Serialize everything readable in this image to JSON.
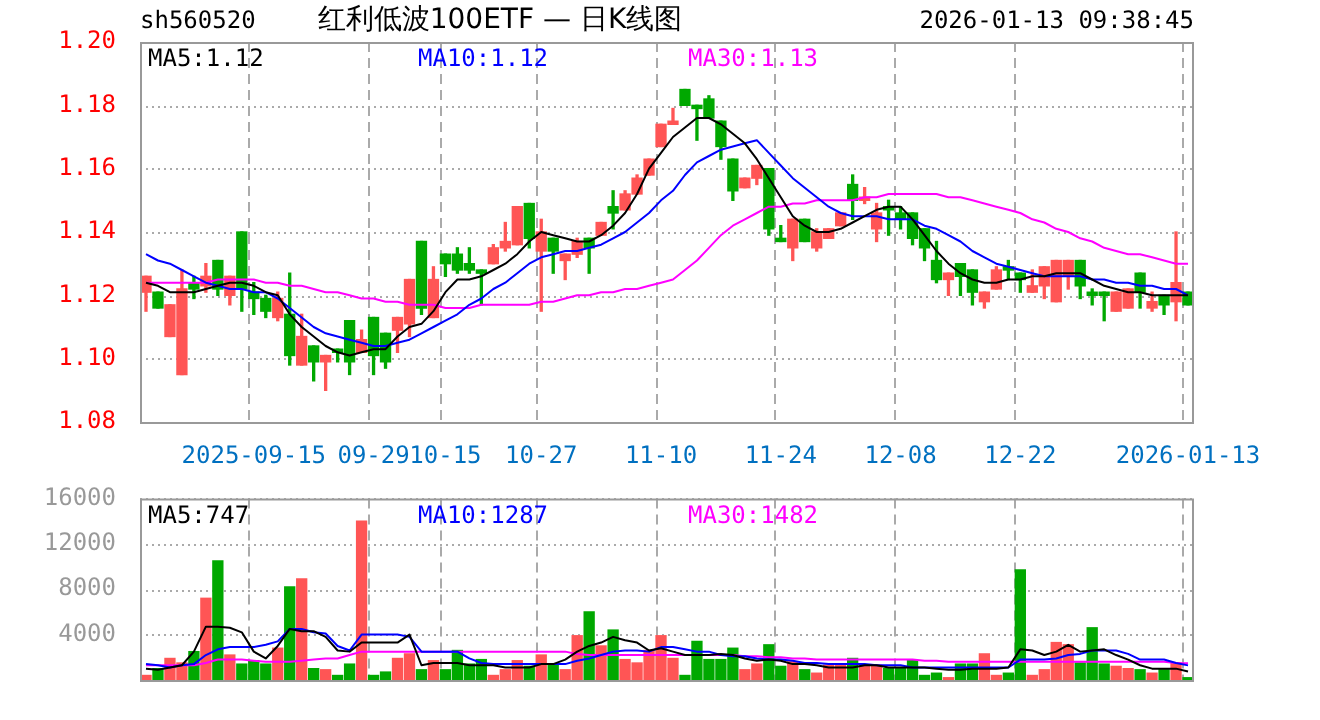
{
  "chart_data": [
    {
      "type": "candlestick",
      "title": "红利低波100ETF — 日K线图",
      "annotations": [
        "sh560520",
        "2026-01-13 09:38:45"
      ],
      "categories": [
        null,
        null,
        null,
        null,
        null,
        null,
        null,
        null,
        null,
        "2025-09-15",
        null,
        null,
        null,
        null,
        null,
        null,
        null,
        null,
        null,
        "09-29",
        null,
        null,
        null,
        null,
        null,
        "10-15",
        null,
        null,
        null,
        null,
        null,
        null,
        null,
        "10-27",
        null,
        null,
        null,
        null,
        null,
        null,
        null,
        null,
        null,
        "11-10",
        null,
        null,
        null,
        null,
        null,
        null,
        null,
        null,
        null,
        "11-24",
        null,
        null,
        null,
        null,
        null,
        null,
        null,
        null,
        null,
        "12-08",
        null,
        null,
        null,
        null,
        null,
        null,
        null,
        null,
        null,
        "12-22",
        null,
        null,
        null,
        null,
        null,
        null,
        null,
        null,
        null,
        null,
        null,
        null,
        null,
        "2026-01-13"
      ],
      "ohlc": [
        [
          1.121,
          1.126,
          1.115,
          1.126
        ],
        [
          1.121,
          1.121,
          1.116,
          1.116
        ],
        [
          1.107,
          1.117,
          1.107,
          1.117
        ],
        [
          1.095,
          1.128,
          1.095,
          1.122
        ],
        [
          1.124,
          1.126,
          1.119,
          1.122
        ],
        [
          1.123,
          1.13,
          1.121,
          1.126
        ],
        [
          1.131,
          1.131,
          1.12,
          1.122
        ],
        [
          1.12,
          1.126,
          1.117,
          1.126
        ],
        [
          1.14,
          1.14,
          1.115,
          1.122
        ],
        [
          1.121,
          1.124,
          1.114,
          1.119
        ],
        [
          1.119,
          1.12,
          1.113,
          1.115
        ],
        [
          1.113,
          1.121,
          1.112,
          1.119
        ],
        [
          1.114,
          1.127,
          1.098,
          1.101
        ],
        [
          1.098,
          1.114,
          1.098,
          1.107
        ],
        [
          1.104,
          1.104,
          1.093,
          1.099
        ],
        [
          1.099,
          1.101,
          1.09,
          1.101
        ],
        [
          1.103,
          1.103,
          1.099,
          1.102
        ],
        [
          1.112,
          1.112,
          1.095,
          1.099
        ],
        [
          1.102,
          1.109,
          1.102,
          1.106
        ],
        [
          1.113,
          1.113,
          1.095,
          1.101
        ],
        [
          1.108,
          1.108,
          1.097,
          1.099
        ],
        [
          1.109,
          1.113,
          1.102,
          1.113
        ],
        [
          1.111,
          1.125,
          1.107,
          1.125
        ],
        [
          1.137,
          1.137,
          1.114,
          1.116
        ],
        [
          1.113,
          1.129,
          1.113,
          1.125
        ],
        [
          1.133,
          1.133,
          1.126,
          1.13
        ],
        [
          1.133,
          1.135,
          1.127,
          1.128
        ],
        [
          1.13,
          1.135,
          1.127,
          1.128
        ],
        [
          1.128,
          1.128,
          1.117,
          1.127
        ],
        [
          1.13,
          1.136,
          1.13,
          1.135
        ],
        [
          1.135,
          1.143,
          1.134,
          1.137
        ],
        [
          1.136,
          1.148,
          1.136,
          1.148
        ],
        [
          1.149,
          1.149,
          1.135,
          1.138
        ],
        [
          1.134,
          1.144,
          1.115,
          1.14
        ],
        [
          1.138,
          1.138,
          1.127,
          1.134
        ],
        [
          1.131,
          1.133,
          1.125,
          1.133
        ],
        [
          1.133,
          1.138,
          1.132,
          1.137
        ],
        [
          1.138,
          1.138,
          1.127,
          1.135
        ],
        [
          1.139,
          1.143,
          1.139,
          1.143
        ],
        [
          1.148,
          1.153,
          1.141,
          1.146
        ],
        [
          1.147,
          1.153,
          1.147,
          1.152
        ],
        [
          1.152,
          1.158,
          1.152,
          1.157
        ],
        [
          1.158,
          1.163,
          1.158,
          1.163
        ],
        [
          1.167,
          1.174,
          1.167,
          1.174
        ],
        [
          1.174,
          1.179,
          1.174,
          1.175
        ],
        [
          1.185,
          1.185,
          1.18,
          1.18
        ],
        [
          1.18,
          1.18,
          1.169,
          1.179
        ],
        [
          1.182,
          1.183,
          1.176,
          1.176
        ],
        [
          1.175,
          1.175,
          1.163,
          1.167
        ],
        [
          1.163,
          1.163,
          1.15,
          1.153
        ],
        [
          1.154,
          1.157,
          1.154,
          1.157
        ],
        [
          1.157,
          1.161,
          1.155,
          1.161
        ],
        [
          1.16,
          1.16,
          1.139,
          1.141
        ],
        [
          1.138,
          1.142,
          1.137,
          1.137
        ],
        [
          1.135,
          1.144,
          1.131,
          1.144
        ],
        [
          1.144,
          1.144,
          1.137,
          1.137
        ],
        [
          1.135,
          1.141,
          1.134,
          1.14
        ],
        [
          1.138,
          1.141,
          1.138,
          1.141
        ],
        [
          1.142,
          1.146,
          1.142,
          1.146
        ],
        [
          1.155,
          1.158,
          1.144,
          1.15
        ],
        [
          1.15,
          1.154,
          1.149,
          1.151
        ],
        [
          1.141,
          1.149,
          1.137,
          1.146
        ],
        [
          1.148,
          1.15,
          1.139,
          1.147
        ],
        [
          1.146,
          1.148,
          1.141,
          1.144
        ],
        [
          1.146,
          1.146,
          1.136,
          1.138
        ],
        [
          1.141,
          1.141,
          1.131,
          1.135
        ],
        [
          1.131,
          1.137,
          1.124,
          1.125
        ],
        [
          1.125,
          1.127,
          1.12,
          1.127
        ],
        [
          1.13,
          1.13,
          1.12,
          1.126
        ],
        [
          1.128,
          1.128,
          1.117,
          1.121
        ],
        [
          1.118,
          1.121,
          1.116,
          1.121
        ],
        [
          1.122,
          1.129,
          1.122,
          1.128
        ],
        [
          1.129,
          1.131,
          1.125,
          1.128
        ],
        [
          1.127,
          1.127,
          1.121,
          1.125
        ],
        [
          1.121,
          1.128,
          1.121,
          1.123
        ],
        [
          1.123,
          1.129,
          1.119,
          1.129
        ],
        [
          1.118,
          1.131,
          1.118,
          1.131
        ],
        [
          1.126,
          1.131,
          1.122,
          1.131
        ],
        [
          1.131,
          1.131,
          1.119,
          1.123
        ],
        [
          1.121,
          1.122,
          1.117,
          1.12
        ],
        [
          1.121,
          1.121,
          1.112,
          1.12
        ],
        [
          1.115,
          1.121,
          1.115,
          1.121
        ],
        [
          1.116,
          1.122,
          1.116,
          1.122
        ],
        [
          1.127,
          1.127,
          1.116,
          1.121
        ],
        [
          1.116,
          1.121,
          1.115,
          1.118
        ],
        [
          1.12,
          1.12,
          1.114,
          1.117
        ],
        [
          1.118,
          1.14,
          1.112,
          1.124
        ],
        [
          1.121,
          1.121,
          1.117,
          1.117
        ]
      ],
      "colors": [
        "#ff5555",
        "#00a800",
        "#ff5555",
        "#ff5555",
        "#00a800",
        "#ff5555",
        "#00a800",
        "#ff5555",
        "#00a800",
        "#00a800",
        "#00a800",
        "#ff5555",
        "#00a800",
        "#ff5555",
        "#00a800",
        "#ff5555",
        "#00a800",
        "#00a800",
        "#ff5555",
        "#00a800",
        "#00a800",
        "#ff5555",
        "#ff5555",
        "#00a800",
        "#ff5555",
        "#00a800",
        "#00a800",
        "#00a800",
        "#00a800",
        "#ff5555",
        "#ff5555",
        "#ff5555",
        "#00a800",
        "#ff5555",
        "#00a800",
        "#ff5555",
        "#ff5555",
        "#00a800",
        "#ff5555",
        "#00a800",
        "#ff5555",
        "#ff5555",
        "#ff5555",
        "#ff5555",
        "#ff5555",
        "#00a800",
        "#00a800",
        "#00a800",
        "#00a800",
        "#00a800",
        "#ff5555",
        "#ff5555",
        "#00a800",
        "#00a800",
        "#ff5555",
        "#00a800",
        "#ff5555",
        "#ff5555",
        "#ff5555",
        "#00a800",
        "#ff5555",
        "#ff5555",
        "#00a800",
        "#00a800",
        "#00a800",
        "#00a800",
        "#00a800",
        "#ff5555",
        "#00a800",
        "#00a800",
        "#ff5555",
        "#ff5555",
        "#00a800",
        "#00a800",
        "#ff5555",
        "#ff5555",
        "#ff5555",
        "#ff5555",
        "#00a800",
        "#00a800",
        "#00a800",
        "#ff5555",
        "#ff5555",
        "#00a800",
        "#ff5555",
        "#00a800",
        "#ff5555",
        "#00a800"
      ],
      "series": [
        {
          "type": "line",
          "name": "MA5:1.12",
          "color": "#000000",
          "values": [
            1.124,
            1.123,
            1.121,
            1.121,
            1.121,
            1.122,
            1.123,
            1.124,
            1.124,
            1.123,
            1.121,
            1.12,
            1.114,
            1.11,
            1.107,
            1.104,
            1.102,
            1.101,
            1.102,
            1.103,
            1.103,
            1.107,
            1.11,
            1.111,
            1.115,
            1.121,
            1.125,
            1.125,
            1.126,
            1.128,
            1.13,
            1.133,
            1.137,
            1.14,
            1.139,
            1.138,
            1.137,
            1.137,
            1.139,
            1.142,
            1.146,
            1.152,
            1.16,
            1.165,
            1.17,
            1.173,
            1.176,
            1.176,
            1.174,
            1.171,
            1.168,
            1.163,
            1.157,
            1.151,
            1.145,
            1.142,
            1.14,
            1.14,
            1.141,
            1.143,
            1.145,
            1.147,
            1.148,
            1.148,
            1.144,
            1.139,
            1.134,
            1.13,
            1.127,
            1.125,
            1.124,
            1.124,
            1.125,
            1.125,
            1.126,
            1.126,
            1.127,
            1.127,
            1.127,
            1.125,
            1.123,
            1.122,
            1.121,
            1.121,
            1.12,
            1.12,
            1.12,
            1.12
          ]
        },
        {
          "type": "line",
          "name": "MA10:1.12",
          "color": "#0000ff",
          "values": [
            1.133,
            1.131,
            1.13,
            1.128,
            1.126,
            1.124,
            1.123,
            1.122,
            1.122,
            1.121,
            1.121,
            1.119,
            1.116,
            1.113,
            1.11,
            1.108,
            1.107,
            1.106,
            1.105,
            1.104,
            1.104,
            1.105,
            1.106,
            1.108,
            1.11,
            1.112,
            1.114,
            1.117,
            1.119,
            1.122,
            1.124,
            1.127,
            1.13,
            1.132,
            1.133,
            1.134,
            1.134,
            1.135,
            1.136,
            1.138,
            1.14,
            1.143,
            1.146,
            1.15,
            1.153,
            1.158,
            1.162,
            1.164,
            1.166,
            1.167,
            1.168,
            1.169,
            1.165,
            1.161,
            1.157,
            1.154,
            1.151,
            1.148,
            1.146,
            1.145,
            1.145,
            1.145,
            1.144,
            1.144,
            1.144,
            1.142,
            1.141,
            1.139,
            1.137,
            1.134,
            1.132,
            1.13,
            1.129,
            1.128,
            1.127,
            1.126,
            1.126,
            1.126,
            1.126,
            1.125,
            1.125,
            1.124,
            1.124,
            1.123,
            1.123,
            1.122,
            1.122,
            1.12
          ]
        },
        {
          "type": "line",
          "name": "MA30:1.13",
          "color": "#ff00ff",
          "values": [
            1.124,
            1.124,
            1.124,
            1.124,
            1.124,
            1.124,
            1.125,
            1.125,
            1.125,
            1.125,
            1.124,
            1.124,
            1.123,
            1.123,
            1.122,
            1.121,
            1.121,
            1.12,
            1.119,
            1.119,
            1.118,
            1.118,
            1.117,
            1.117,
            1.117,
            1.116,
            1.116,
            1.116,
            1.117,
            1.117,
            1.117,
            1.117,
            1.117,
            1.118,
            1.118,
            1.119,
            1.12,
            1.12,
            1.121,
            1.121,
            1.122,
            1.122,
            1.123,
            1.124,
            1.125,
            1.128,
            1.131,
            1.135,
            1.139,
            1.142,
            1.144,
            1.146,
            1.148,
            1.148,
            1.149,
            1.149,
            1.15,
            1.15,
            1.15,
            1.15,
            1.151,
            1.151,
            1.152,
            1.152,
            1.152,
            1.152,
            1.152,
            1.151,
            1.151,
            1.15,
            1.149,
            1.148,
            1.147,
            1.146,
            1.144,
            1.143,
            1.141,
            1.14,
            1.138,
            1.137,
            1.135,
            1.134,
            1.133,
            1.133,
            1.132,
            1.131,
            1.13,
            1.13
          ]
        }
      ],
      "ylim": [
        1.08,
        1.2
      ],
      "yticks": [
        {
          "value": 1.08,
          "label": "1.08"
        },
        {
          "value": 1.1,
          "label": "1.10"
        },
        {
          "value": 1.12,
          "label": "1.12"
        },
        {
          "value": 1.14,
          "label": "1.14"
        },
        {
          "value": 1.16,
          "label": "1.16"
        },
        {
          "value": 1.18,
          "label": "1.18"
        },
        {
          "value": 1.2,
          "label": "1.20"
        }
      ],
      "grid": true,
      "legend": "top left"
    },
    {
      "type": "bar",
      "tick_labels": "y",
      "categories": [
        null,
        null,
        null,
        null,
        null,
        null,
        null,
        null,
        null,
        null,
        null,
        null,
        null,
        null,
        null,
        null,
        null,
        null,
        null,
        null,
        null,
        null,
        null,
        null,
        null,
        null,
        null,
        null,
        null,
        null,
        null,
        null,
        null,
        null,
        null,
        null,
        null,
        null,
        null,
        null,
        null,
        null,
        null,
        null,
        null,
        null,
        null,
        null,
        null,
        null,
        null,
        null,
        null,
        null,
        null,
        null,
        null,
        null,
        null,
        null,
        null,
        null,
        null,
        null,
        null,
        null,
        null,
        null,
        null,
        null,
        null,
        null,
        null,
        null,
        null,
        null,
        null,
        null,
        null,
        null,
        null,
        null,
        null,
        null,
        null,
        null,
        null,
        null
      ],
      "values": [
        400,
        1000,
        1900,
        1500,
        2500,
        7200,
        10500,
        2200,
        1400,
        1700,
        1400,
        2800,
        8200,
        8900,
        1000,
        900,
        400,
        1400,
        14000,
        400,
        700,
        1900,
        2300,
        900,
        1700,
        900,
        2600,
        1400,
        1800,
        400,
        900,
        1700,
        1200,
        2200,
        1400,
        900,
        3900,
        6000,
        3000,
        4400,
        1800,
        1500,
        2600,
        3900,
        1900,
        400,
        3400,
        1800,
        1800,
        2800,
        900,
        1400,
        3100,
        1200,
        1600,
        900,
        600,
        1300,
        1300,
        1900,
        1300,
        1300,
        1000,
        1000,
        1700,
        400,
        600,
        200,
        1400,
        1400,
        2300,
        400,
        600,
        9700,
        400,
        900,
        3300,
        3100,
        1500,
        4600,
        1400,
        1200,
        1000,
        900,
        600,
        900,
        1500,
        200
      ],
      "colors": [
        "#ff5555",
        "#00a800",
        "#ff5555",
        "#ff5555",
        "#00a800",
        "#ff5555",
        "#00a800",
        "#ff5555",
        "#00a800",
        "#00a800",
        "#00a800",
        "#ff5555",
        "#00a800",
        "#ff5555",
        "#00a800",
        "#ff5555",
        "#00a800",
        "#00a800",
        "#ff5555",
        "#00a800",
        "#00a800",
        "#ff5555",
        "#ff5555",
        "#00a800",
        "#ff5555",
        "#00a800",
        "#00a800",
        "#00a800",
        "#00a800",
        "#ff5555",
        "#ff5555",
        "#ff5555",
        "#00a800",
        "#ff5555",
        "#00a800",
        "#ff5555",
        "#ff5555",
        "#00a800",
        "#ff5555",
        "#00a800",
        "#ff5555",
        "#ff5555",
        "#ff5555",
        "#ff5555",
        "#ff5555",
        "#00a800",
        "#00a800",
        "#00a800",
        "#00a800",
        "#00a800",
        "#ff5555",
        "#ff5555",
        "#00a800",
        "#00a800",
        "#ff5555",
        "#00a800",
        "#ff5555",
        "#ff5555",
        "#ff5555",
        "#00a800",
        "#ff5555",
        "#ff5555",
        "#00a800",
        "#00a800",
        "#00a800",
        "#00a800",
        "#00a800",
        "#ff5555",
        "#00a800",
        "#00a800",
        "#ff5555",
        "#ff5555",
        "#00a800",
        "#00a800",
        "#ff5555",
        "#ff5555",
        "#ff5555",
        "#ff5555",
        "#00a800",
        "#00a800",
        "#00a800",
        "#ff5555",
        "#ff5555",
        "#00a800",
        "#ff5555",
        "#00a800",
        "#ff5555",
        "#00a800"
      ],
      "series": [
        {
          "type": "line",
          "name": "MA5:747",
          "color": "#000000",
          "values": [
            1000,
            900,
            1100,
            1300,
            2500,
            4700,
            4700,
            4600,
            4200,
            2500,
            1900,
            3000,
            4500,
            4300,
            4300,
            3800,
            2600,
            2500,
            3300,
            3300,
            3300,
            3300,
            4000,
            1300,
            1500,
            1500,
            1500,
            1300,
            1300,
            1300,
            1100,
            1100,
            1100,
            1400,
            1400,
            1800,
            2500,
            3000,
            3300,
            3800,
            3500,
            3300,
            2600,
            2800,
            2500,
            2200,
            2200,
            2200,
            2300,
            2200,
            1900,
            1700,
            1800,
            1700,
            1400,
            1400,
            1300,
            1100,
            1100,
            1100,
            1300,
            1300,
            1100,
            1100,
            1100,
            1100,
            1000,
            900,
            900,
            1000,
            1000,
            1000,
            1100,
            2700,
            2600,
            2200,
            2500,
            3100,
            2500,
            2600,
            2700,
            2200,
            1800,
            1300,
            1000,
            1000,
            1000,
            747
          ]
        },
        {
          "type": "line",
          "name": "MA10:1287",
          "color": "#0000ff",
          "values": [
            1400,
            1300,
            1100,
            1300,
            1400,
            2200,
            2700,
            2900,
            2900,
            2900,
            3100,
            3400,
            4500,
            4500,
            4200,
            4100,
            3000,
            2600,
            4000,
            4000,
            4000,
            4000,
            3800,
            2500,
            2500,
            2500,
            2500,
            1900,
            1500,
            1400,
            1400,
            1400,
            1400,
            1400,
            1400,
            1400,
            1700,
            1900,
            2200,
            2500,
            2600,
            2600,
            2500,
            2900,
            2900,
            2700,
            2500,
            2500,
            2200,
            2100,
            2100,
            1900,
            1800,
            1800,
            1700,
            1500,
            1500,
            1400,
            1400,
            1400,
            1400,
            1300,
            1300,
            1300,
            1100,
            1100,
            1100,
            1100,
            1100,
            1100,
            1100,
            1100,
            1100,
            1800,
            1800,
            1800,
            1900,
            2200,
            2300,
            2600,
            2600,
            2600,
            2300,
            1800,
            1800,
            1800,
            1500,
            1287
          ]
        },
        {
          "type": "line",
          "name": "MA30:1482",
          "color": "#ff00ff",
          "values": [
            1300,
            1300,
            1300,
            1300,
            1300,
            1500,
            1800,
            1800,
            1800,
            1700,
            1600,
            1600,
            1600,
            1700,
            1800,
            1900,
            1900,
            2200,
            2500,
            2500,
            2500,
            2500,
            2500,
            2500,
            2500,
            2500,
            2500,
            2500,
            2500,
            2500,
            2500,
            2500,
            2500,
            2500,
            2500,
            2500,
            2300,
            2200,
            2200,
            2200,
            2200,
            2200,
            2200,
            2200,
            2200,
            2200,
            2200,
            2200,
            2200,
            2200,
            2100,
            2100,
            2000,
            2000,
            1900,
            1900,
            1800,
            1800,
            1800,
            1800,
            1800,
            1800,
            1800,
            1800,
            1800,
            1700,
            1700,
            1600,
            1600,
            1600,
            1600,
            1600,
            1600,
            1600,
            1600,
            1600,
            1600,
            1600,
            1600,
            1600,
            1600,
            1600,
            1600,
            1600,
            1600,
            1600,
            1500,
            1482
          ]
        }
      ],
      "ylim": [
        0,
        16000
      ],
      "yticks": [
        4000,
        8000,
        12000,
        16000
      ],
      "grid": true,
      "legend": "top left"
    }
  ]
}
